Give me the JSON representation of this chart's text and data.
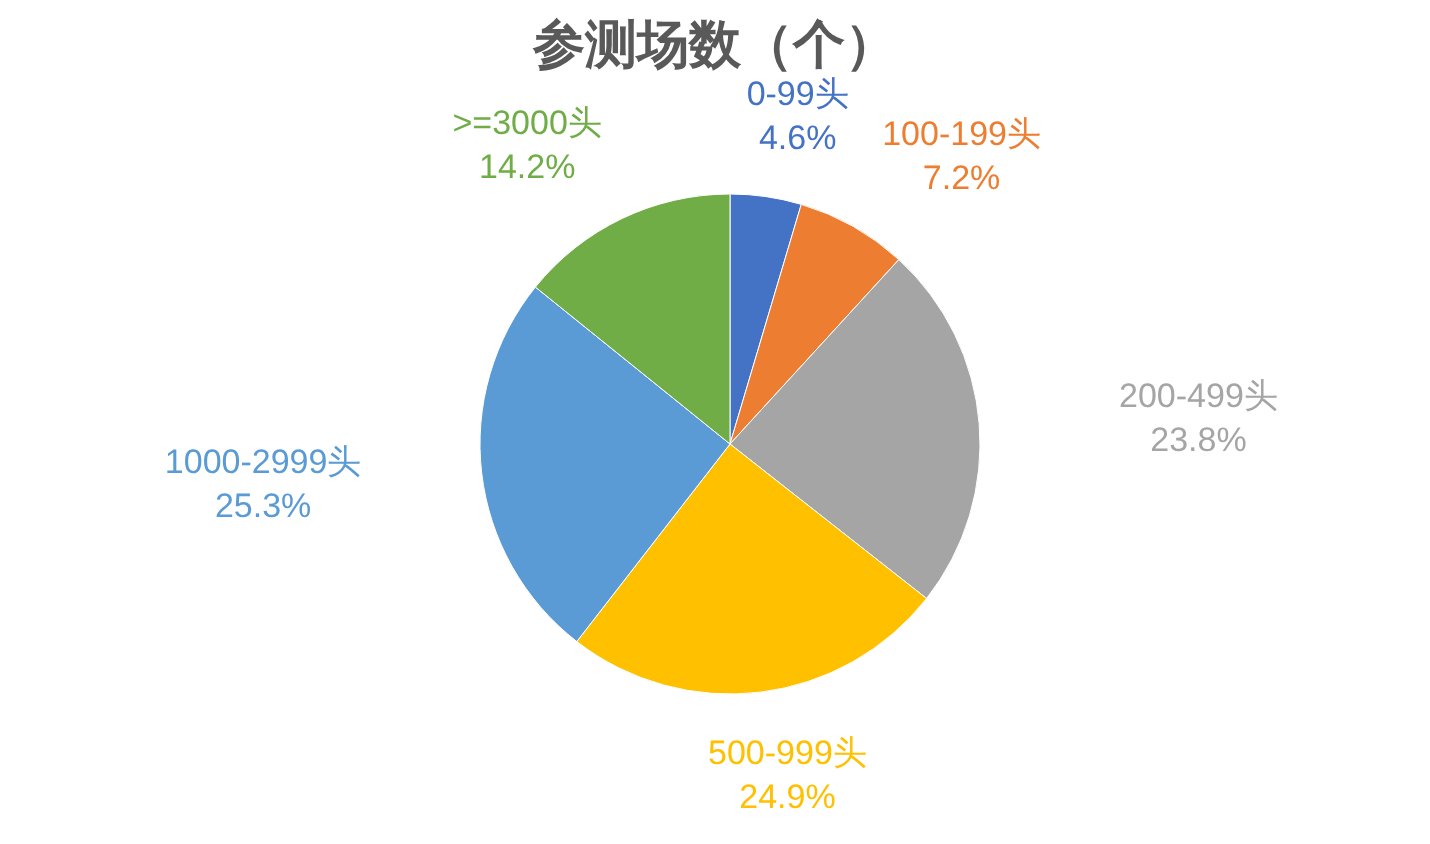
{
  "chart_data": {
    "type": "pie",
    "title": "参测场数（个）",
    "categories": [
      "0-99头",
      "100-199头",
      "200-499头",
      "500-999头",
      "1000-2999头",
      ">=3000头"
    ],
    "values": [
      4.6,
      7.2,
      23.8,
      24.9,
      25.3,
      14.2
    ],
    "value_labels": [
      "4.6%",
      "7.2%",
      "23.8%",
      "24.9%",
      "25.3%",
      "14.2%"
    ],
    "colors": [
      "#4472c4",
      "#ed7d31",
      "#a5a5a5",
      "#ffc000",
      "#5b9bd5",
      "#70ad47"
    ]
  }
}
